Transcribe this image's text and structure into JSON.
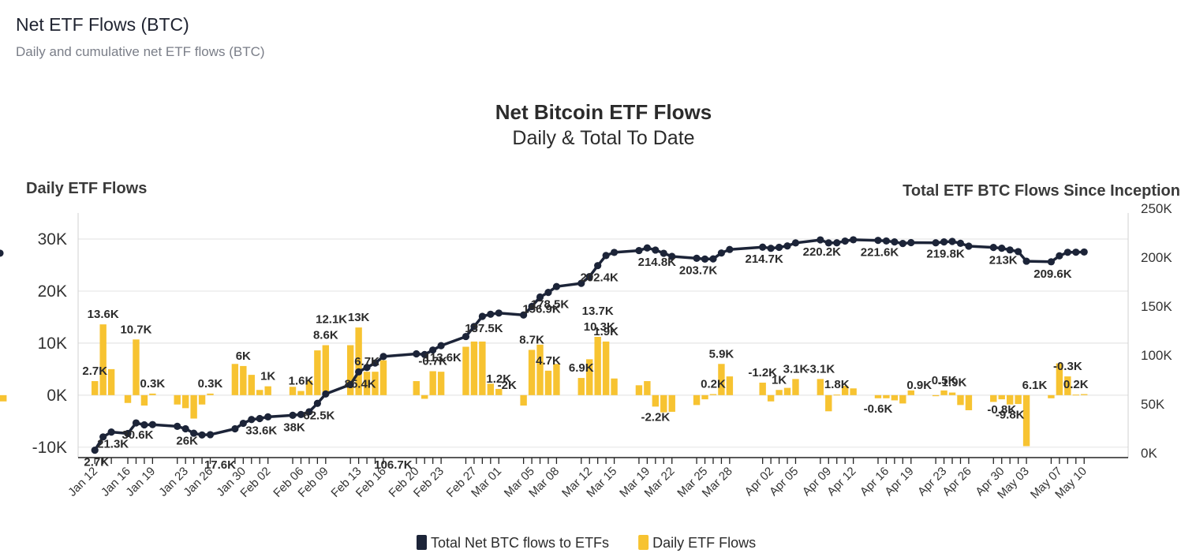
{
  "page": {
    "title": "Net ETF Flows (BTC)",
    "subtitle": "Daily and cumulative net ETF flows (BTC)"
  },
  "colors": {
    "bar": "#f7c331",
    "line": "#1c2438",
    "grid": "#e6e6e6"
  },
  "chart_data": {
    "type": "bar",
    "title": "Net Bitcoin ETF Flows",
    "subtitle": "Daily & Total To Date",
    "ylabel_left": "Daily ETF Flows",
    "ylabel_right": "Total ETF BTC Flows Since Inception",
    "ylim_left": [
      -12000,
      35000
    ],
    "ylim_right": [
      0,
      250000
    ],
    "yticks_left": [
      {
        "value": 30000,
        "label": "30K"
      },
      {
        "value": 20000,
        "label": "20K"
      },
      {
        "value": 10000,
        "label": "10K"
      },
      {
        "value": 0,
        "label": "0K"
      },
      {
        "value": -10000,
        "label": "-10K"
      }
    ],
    "yticks_right": [
      {
        "value": 250000,
        "label": "250K"
      },
      {
        "value": 200000,
        "label": "200K"
      },
      {
        "value": 150000,
        "label": "150K"
      },
      {
        "value": 100000,
        "label": "100K"
      },
      {
        "value": 50000,
        "label": "50K"
      },
      {
        "value": 0,
        "label": "0K"
      }
    ],
    "x_tick_labels": [
      {
        "day": 1,
        "label": "Jan 12"
      },
      {
        "day": 5,
        "label": "Jan 16"
      },
      {
        "day": 8,
        "label": "Jan 19"
      },
      {
        "day": 12,
        "label": "Jan 23"
      },
      {
        "day": 15,
        "label": "Jan 26"
      },
      {
        "day": 19,
        "label": "Jan 30"
      },
      {
        "day": 22,
        "label": "Feb 02"
      },
      {
        "day": 26,
        "label": "Feb 06"
      },
      {
        "day": 29,
        "label": "Feb 09"
      },
      {
        "day": 33,
        "label": "Feb 13"
      },
      {
        "day": 36,
        "label": "Feb 16"
      },
      {
        "day": 40,
        "label": "Feb 20"
      },
      {
        "day": 43,
        "label": "Feb 23"
      },
      {
        "day": 47,
        "label": "Feb 27"
      },
      {
        "day": 50,
        "label": "Mar 01"
      },
      {
        "day": 54,
        "label": "Mar 05"
      },
      {
        "day": 57,
        "label": "Mar 08"
      },
      {
        "day": 61,
        "label": "Mar 12"
      },
      {
        "day": 64,
        "label": "Mar 15"
      },
      {
        "day": 68,
        "label": "Mar 19"
      },
      {
        "day": 71,
        "label": "Mar 22"
      },
      {
        "day": 75,
        "label": "Mar 25"
      },
      {
        "day": 78,
        "label": "Mar 28"
      },
      {
        "day": 83,
        "label": "Apr 02"
      },
      {
        "day": 86,
        "label": "Apr 05"
      },
      {
        "day": 90,
        "label": "Apr 09"
      },
      {
        "day": 93,
        "label": "Apr 12"
      },
      {
        "day": 97,
        "label": "Apr 16"
      },
      {
        "day": 100,
        "label": "Apr 19"
      },
      {
        "day": 104,
        "label": "Apr 23"
      },
      {
        "day": 107,
        "label": "Apr 26"
      },
      {
        "day": 111,
        "label": "Apr 30"
      },
      {
        "day": 114,
        "label": "May 03"
      },
      {
        "day": 118,
        "label": "May 07"
      },
      {
        "day": 121,
        "label": "May 10"
      }
    ],
    "trading_days": [
      1,
      2,
      3,
      5,
      6,
      7,
      8,
      11,
      12,
      13,
      14,
      15,
      18,
      19,
      20,
      21,
      22,
      25,
      26,
      27,
      28,
      29,
      32,
      33,
      34,
      35,
      36,
      40,
      41,
      42,
      43,
      46,
      47,
      48,
      49,
      50,
      53,
      54,
      55,
      56,
      57,
      60,
      61,
      62,
      63,
      64,
      67,
      68,
      69,
      70,
      71,
      74,
      75,
      76,
      77,
      78,
      82,
      83,
      84,
      85,
      86,
      89,
      90,
      91,
      92,
      93,
      96,
      97,
      98,
      99,
      100,
      103,
      104,
      105,
      106,
      107,
      110,
      111,
      112,
      113,
      114,
      117,
      118,
      119,
      120,
      121
    ],
    "series": [
      {
        "name": "Daily ETF Flows",
        "type": "bar",
        "axis": "left",
        "values": [
          2700,
          13600,
          5000,
          -1500,
          10700,
          -2000,
          300,
          -1800,
          -2500,
          -4500,
          -1800,
          300,
          6000,
          5600,
          3900,
          1000,
          1700,
          1600,
          800,
          2800,
          8600,
          9600,
          9600,
          13000,
          4500,
          4500,
          6700,
          2700,
          -700,
          4600,
          4500,
          9300,
          10300,
          10300,
          2200,
          1200,
          -2000,
          8700,
          9700,
          4700,
          6000,
          3300,
          6900,
          11200,
          10300,
          3200,
          1900,
          2700,
          -2200,
          -3300,
          -3200,
          -1900,
          -800,
          200,
          6000,
          3600,
          2400,
          -1200,
          1000,
          1400,
          3100,
          3100,
          -3100,
          100,
          1800,
          1300,
          -600,
          -600,
          -1000,
          -1600,
          900,
          -200,
          900,
          500,
          -1900,
          -2900,
          -1300,
          -800,
          -1800,
          -1700,
          -9800,
          -600,
          6100,
          3600,
          100,
          200,
          -1200
        ]
      },
      {
        "name": "Total Net BTC flows to ETFs",
        "type": "line",
        "axis": "right",
        "values": [
          2700,
          16300,
          21300,
          19800,
          30600,
          28600,
          28900,
          27100,
          24600,
          20100,
          18300,
          18600,
          24600,
          30200,
          34100,
          35100,
          36800,
          38400,
          39200,
          42000,
          50600,
          60200,
          69800,
          82800,
          87300,
          91800,
          98500,
          101200,
          100500,
          105100,
          109600,
          118900,
          129200,
          139500,
          141700,
          142900,
          140900,
          149600,
          159300,
          164000,
          170000,
          173300,
          180200,
          191400,
          201700,
          204900,
          206800,
          209500,
          207300,
          204000,
          200800,
          198900,
          198100,
          198300,
          204300,
          207900,
          210300,
          209100,
          210100,
          211500,
          214600,
          217700,
          214600,
          214700,
          216500,
          217800,
          217200,
          216600,
          215600,
          214000,
          214900,
          214700,
          215600,
          216100,
          214200,
          211300,
          210000,
          209200,
          207400,
          205700,
          195900,
          195300,
          201400,
          205000,
          205100,
          205300,
          204100
        ]
      }
    ],
    "bar_labels": [
      {
        "day": 1,
        "text": "2.7K"
      },
      {
        "day": 2,
        "text": "13.6K"
      },
      {
        "day": 6,
        "text": "10.7K"
      },
      {
        "day": 8,
        "text": "0.3K"
      },
      {
        "day": 15,
        "text": "0.3K"
      },
      {
        "day": 19,
        "text": "6K"
      },
      {
        "day": 22,
        "text": "1K"
      },
      {
        "day": 26,
        "text": "1.6K"
      },
      {
        "day": 29,
        "text": "8.6K"
      },
      {
        "day": 29.7,
        "text": "12.1K"
      },
      {
        "day": 33,
        "text": "13K"
      },
      {
        "day": 34,
        "text": "6.7K"
      },
      {
        "day": 42,
        "text": "-0.7K"
      },
      {
        "day": 50,
        "text": "1.2K"
      },
      {
        "day": 51,
        "text": "-2K"
      },
      {
        "day": 54,
        "text": "8.7K"
      },
      {
        "day": 56,
        "text": "4.7K"
      },
      {
        "day": 60,
        "text": "6.9K"
      },
      {
        "day": 62,
        "text": "13.7K"
      },
      {
        "day": 62.2,
        "text": "10.3K"
      },
      {
        "day": 63,
        "text": "1.9K"
      },
      {
        "day": 69,
        "text": "-2.2K"
      },
      {
        "day": 76,
        "text": "0.2K"
      },
      {
        "day": 77,
        "text": "5.9K"
      },
      {
        "day": 82,
        "text": "-1.2K"
      },
      {
        "day": 84,
        "text": "1K"
      },
      {
        "day": 86,
        "text": "3.1K"
      },
      {
        "day": 89,
        "text": "-3.1K"
      },
      {
        "day": 91,
        "text": "1.8K"
      },
      {
        "day": 96,
        "text": "-0.6K"
      },
      {
        "day": 101,
        "text": "0.9K"
      },
      {
        "day": 104,
        "text": "0.5K"
      },
      {
        "day": 105,
        "text": "-1.9K"
      },
      {
        "day": 111,
        "text": "-0.8K"
      },
      {
        "day": 112,
        "text": "-9.8K"
      },
      {
        "day": 115,
        "text": "6.1K"
      },
      {
        "day": 120,
        "text": "0.2K"
      },
      {
        "day": 119,
        "text": "-0.3K"
      }
    ],
    "line_labels": [
      {
        "day": 1,
        "text": "2.7K"
      },
      {
        "day": 3,
        "text": "21.3K"
      },
      {
        "day": 6,
        "text": "30.6K"
      },
      {
        "day": 12,
        "text": "26K"
      },
      {
        "day": 16,
        "text": "17.6K"
      },
      {
        "day": 21,
        "text": "33.6K"
      },
      {
        "day": 25,
        "text": "38K"
      },
      {
        "day": 28,
        "text": "62.5K"
      },
      {
        "day": 33,
        "text": "85.4K"
      },
      {
        "day": 37,
        "text": "106.7K"
      },
      {
        "day": 43,
        "text": "113.6K"
      },
      {
        "day": 48,
        "text": "137.5K"
      },
      {
        "day": 55,
        "text": "156.9K"
      },
      {
        "day": 56,
        "text": "178.5K"
      },
      {
        "day": 62,
        "text": "202.4K"
      },
      {
        "day": 69,
        "text": "214.8K"
      },
      {
        "day": 74,
        "text": "203.7K"
      },
      {
        "day": 82,
        "text": "214.7K"
      },
      {
        "day": 89,
        "text": "220.2K"
      },
      {
        "day": 96,
        "text": "221.6K"
      },
      {
        "day": 104,
        "text": "219.8K"
      },
      {
        "day": 111,
        "text": "213K"
      },
      {
        "day": 117,
        "text": "209.6K"
      }
    ],
    "legend": [
      {
        "name": "Total Net BTC flows to ETFs",
        "color": "#1c2438"
      },
      {
        "name": "Daily ETF Flows",
        "color": "#f7c331"
      }
    ],
    "legend_position": "bottom-center"
  }
}
